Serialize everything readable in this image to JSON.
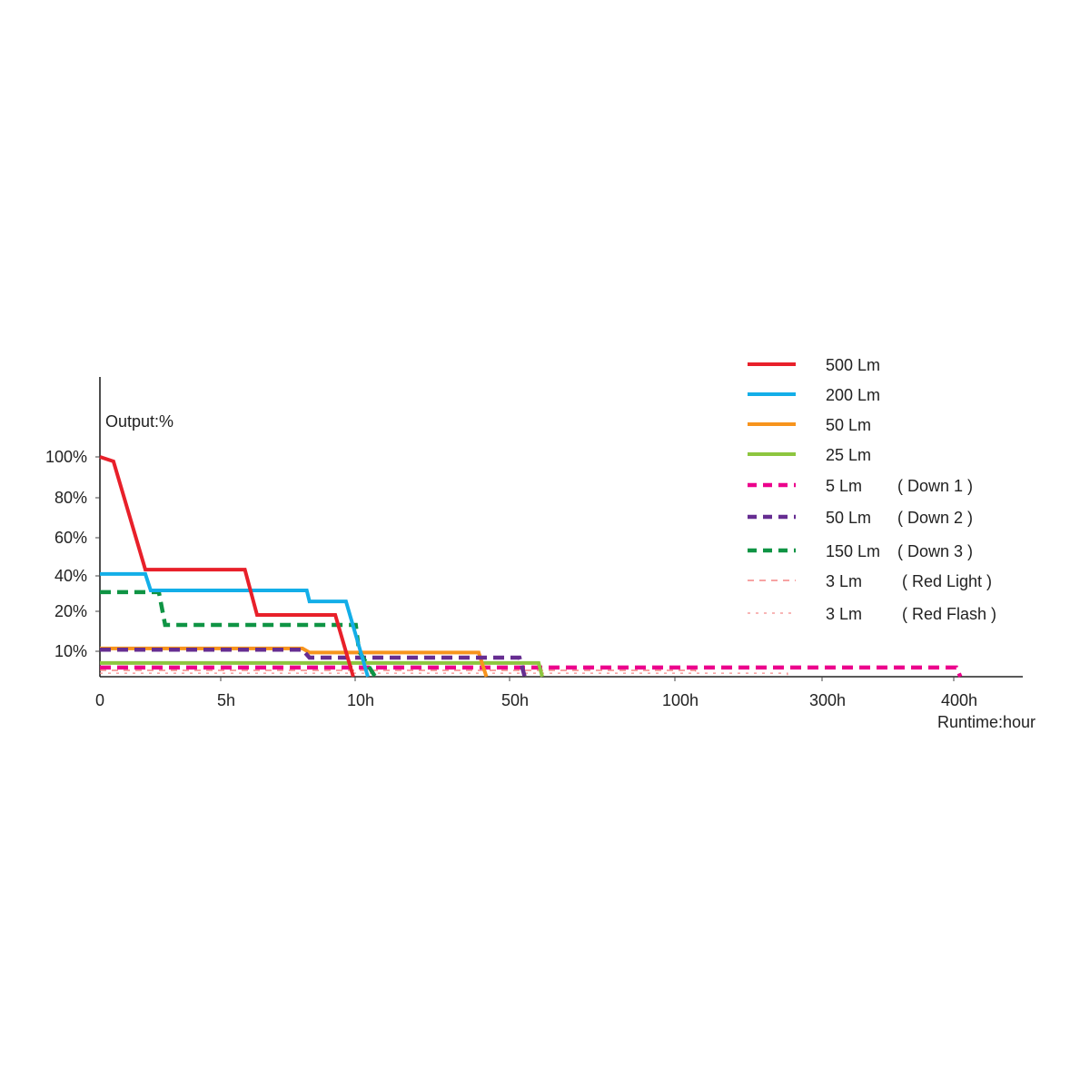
{
  "chart_data": {
    "type": "line",
    "title": "",
    "ylabel": "Output:%",
    "xlabel": "Runtime:hour",
    "x_scale": "non-linear (custom tick spacing)",
    "x_ticks": [
      {
        "value": 0,
        "label": "0"
      },
      {
        "value": 5,
        "label": "5h"
      },
      {
        "value": 10,
        "label": "10h"
      },
      {
        "value": 50,
        "label": "50h"
      },
      {
        "value": 100,
        "label": "100h"
      },
      {
        "value": 300,
        "label": "300h"
      },
      {
        "value": 400,
        "label": "400h"
      }
    ],
    "y_ticks": [
      {
        "value": 100,
        "label": "100%"
      },
      {
        "value": 80,
        "label": "80%"
      },
      {
        "value": 60,
        "label": "60%"
      },
      {
        "value": 40,
        "label": "40%"
      },
      {
        "value": 20,
        "label": "20%"
      },
      {
        "value": 10,
        "label": "10%"
      }
    ],
    "grid": false,
    "legend_position": "top-right",
    "series": [
      {
        "name": "500 Lm",
        "note": "",
        "color": "#e8202a",
        "style": "solid",
        "points": [
          [
            0,
            100
          ],
          [
            0.56,
            97.8
          ],
          [
            1.88,
            43.3
          ],
          [
            5.9,
            43.3
          ],
          [
            6.35,
            19.1
          ],
          [
            9.26,
            19.1
          ],
          [
            9.93,
            0
          ]
        ]
      },
      {
        "name": "200 Lm",
        "note": "",
        "color": "#13aee8",
        "style": "solid",
        "points": [
          [
            0,
            41
          ],
          [
            1.88,
            41
          ],
          [
            2.1,
            31.8
          ],
          [
            8.2,
            31.8
          ],
          [
            8.3,
            25.6
          ],
          [
            9.66,
            25.6
          ],
          [
            13.3,
            0
          ]
        ]
      },
      {
        "name": "50 Lm",
        "note": "",
        "color": "#f7941d",
        "style": "solid",
        "points": [
          [
            0,
            10.7
          ],
          [
            8.04,
            10.7
          ],
          [
            8.3,
            9.5
          ],
          [
            42,
            9.5
          ],
          [
            44,
            0
          ]
        ]
      },
      {
        "name": "25 Lm",
        "note": "",
        "color": "#8dc63f",
        "style": "solid",
        "points": [
          [
            0,
            5.4
          ],
          [
            58.8,
            5.4
          ],
          [
            59.9,
            0
          ]
        ]
      },
      {
        "name": "5 Lm",
        "note": "( Down 1 )",
        "color": "#ec008c",
        "style": "dashed",
        "points": [
          [
            0,
            3.6
          ],
          [
            402,
            3.6
          ],
          [
            405,
            0
          ]
        ]
      },
      {
        "name": "50 Lm",
        "note": "( Down 2 )",
        "color": "#662d91",
        "style": "dashed",
        "points": [
          [
            0,
            10.4
          ],
          [
            8.04,
            10.4
          ],
          [
            8.3,
            7.5
          ],
          [
            53,
            7.5
          ],
          [
            54.6,
            0
          ]
        ]
      },
      {
        "name": "150 Lm",
        "note": "( Down 3 )",
        "color": "#0f9444",
        "style": "dashed",
        "points": [
          [
            0,
            30.8
          ],
          [
            2.44,
            30.8
          ],
          [
            2.7,
            16.6
          ],
          [
            10.16,
            16.6
          ],
          [
            11,
            10
          ],
          [
            15.2,
            0
          ]
        ]
      },
      {
        "name": "3 Lm",
        "note": "( Red Light )",
        "color": "#f26c6c",
        "style": "thin-dashed",
        "points": [
          [
            0,
            2.5
          ],
          [
            128,
            2.5
          ],
          [
            128,
            0
          ]
        ]
      },
      {
        "name": "3 Lm",
        "note": "( Red Flash )",
        "color": "#f48a8a",
        "style": "dotted",
        "points": [
          [
            0,
            1.4
          ],
          [
            253,
            1.4
          ],
          [
            253,
            0
          ]
        ]
      }
    ]
  }
}
